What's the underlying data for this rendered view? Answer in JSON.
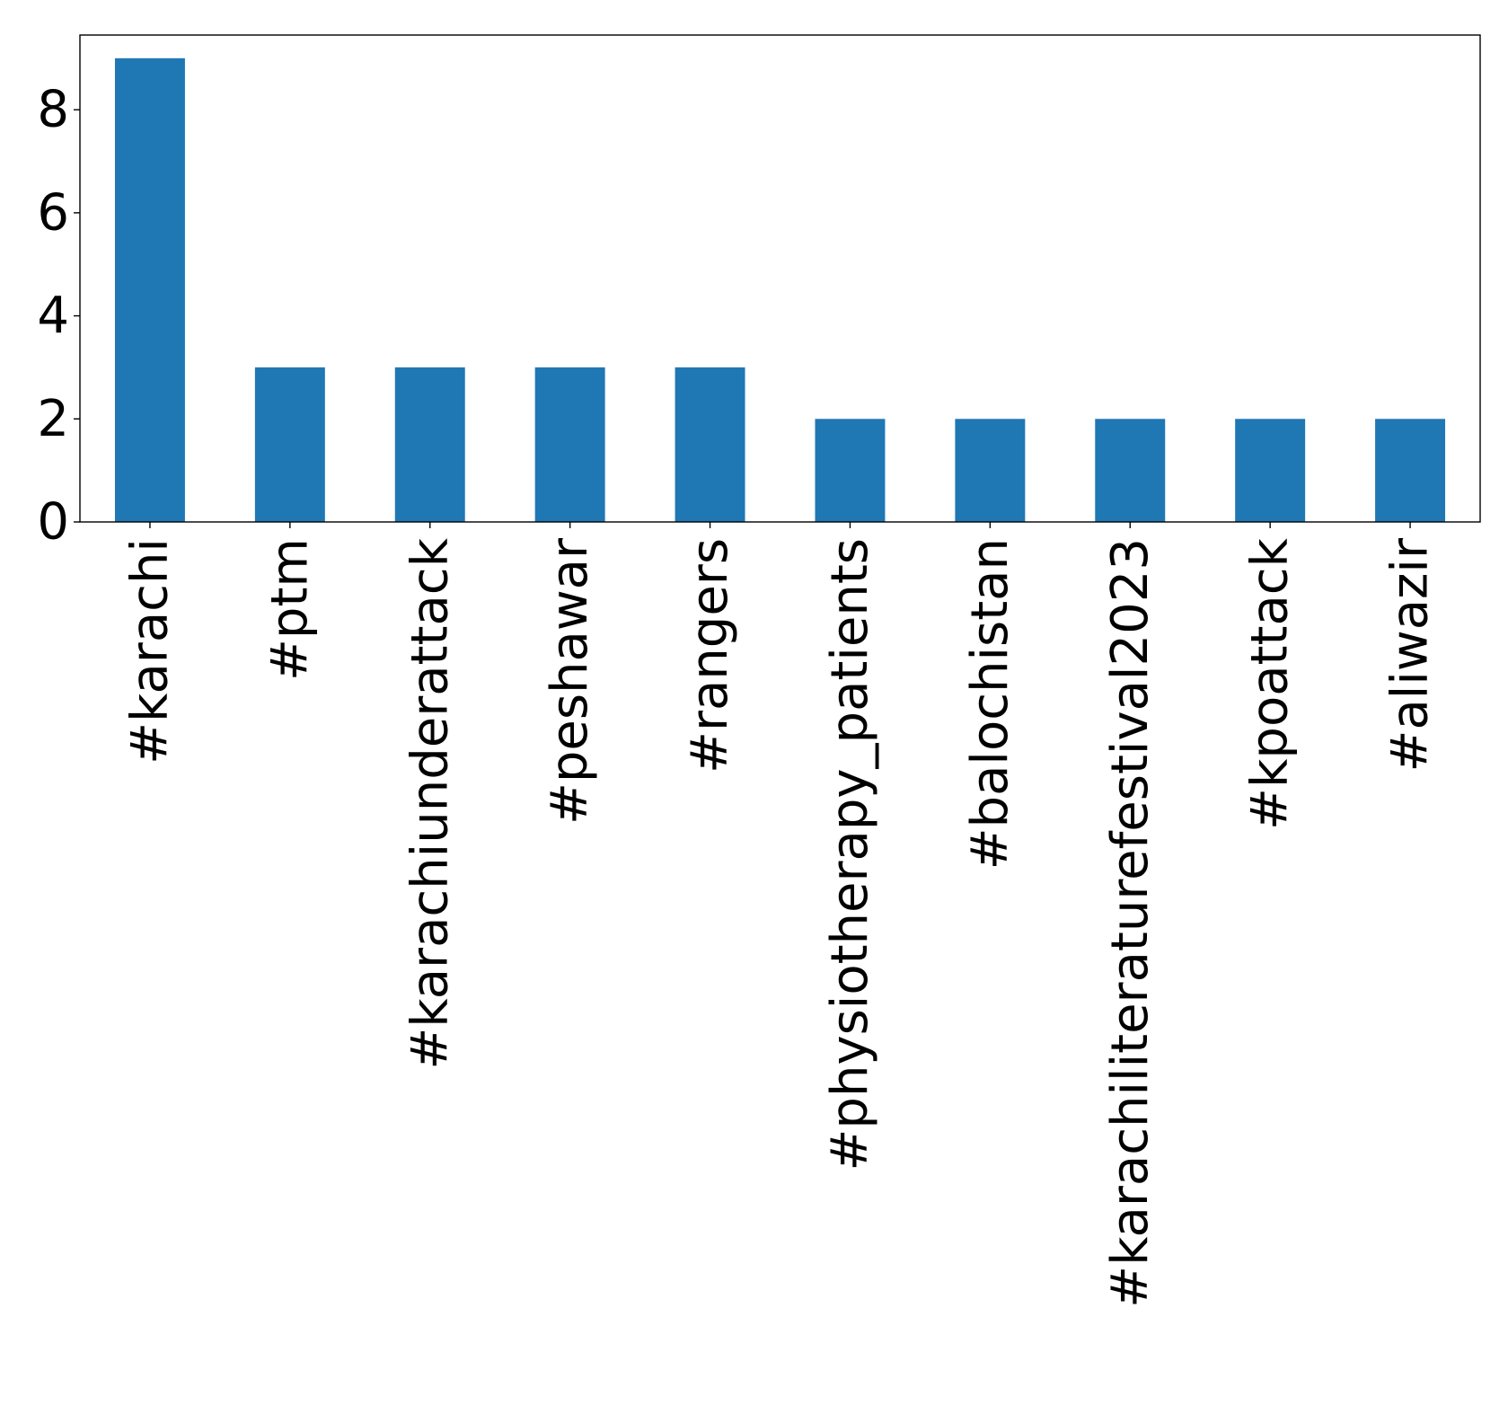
{
  "chart_data": {
    "type": "bar",
    "title": "",
    "xlabel": "",
    "ylabel": "",
    "categories": [
      "#karachi",
      "#ptm",
      "#karachiunderattack",
      "#peshawar",
      "#rangers",
      "#physiotherapy_patients",
      "#balochistan",
      "#karachiliteraturefestival2023",
      "#kpoattack",
      "#aliwazir"
    ],
    "values": [
      9,
      3,
      3,
      3,
      3,
      2,
      2,
      2,
      2,
      2
    ],
    "ylim": [
      0,
      9.45
    ],
    "yticks": [
      0,
      2,
      4,
      6,
      8
    ],
    "ytick_labels": [
      "0",
      "2",
      "4",
      "6",
      "8"
    ],
    "bar_color": "#1f77b4",
    "grid": false,
    "legend": "none",
    "xtick_rotation": "vertical"
  }
}
